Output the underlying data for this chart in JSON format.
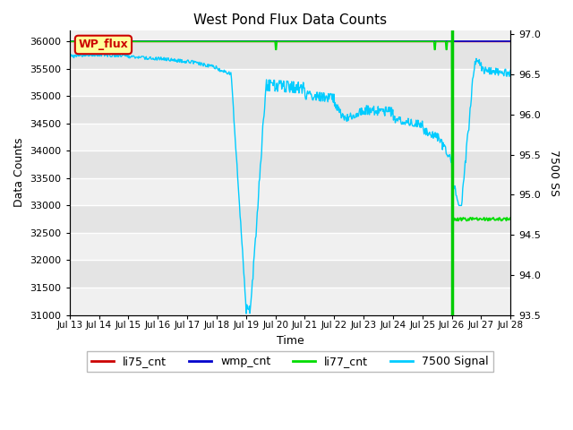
{
  "title": "West Pond Flux Data Counts",
  "xlabel": "Time",
  "ylabel": "Data Counts",
  "ylabel2": "7500 SS",
  "legend_label": "WP_flux",
  "ylim": [
    31000,
    36200
  ],
  "ylim2": [
    93.5,
    97.05
  ],
  "yticks_left": [
    31000,
    31500,
    32000,
    32500,
    33000,
    33500,
    34000,
    34500,
    35000,
    35500,
    36000
  ],
  "yticks_right": [
    93.5,
    94.0,
    94.5,
    95.0,
    95.5,
    96.0,
    96.5,
    97.0
  ],
  "xtick_labels": [
    "Jul 13",
    "Jul 14",
    "Jul 15",
    "Jul 16",
    "Jul 17",
    "Jul 18",
    "Jul 19",
    "Jul 20",
    "Jul 21",
    "Jul 22",
    "Jul 23",
    "Jul 24",
    "Jul 25",
    "Jul 26",
    "Jul 27",
    "Jul 28"
  ],
  "colors": {
    "li75_cnt": "#cc0000",
    "wmp_cnt": "#0000cc",
    "li77_cnt": "#00dd00",
    "signal_7500": "#00ccff",
    "vline": "#00cc00",
    "bg_light": "#f0f0f0",
    "bg_dark": "#e0e0e0",
    "grid": "#ffffff",
    "legend_box_face": "#ffff99",
    "legend_box_edge": "#cc0000"
  }
}
